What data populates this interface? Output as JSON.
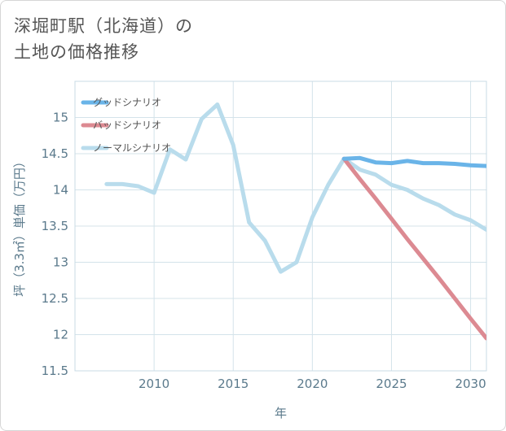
{
  "title_lines": [
    "深堀町駅（北海道）の",
    "土地の価格推移"
  ],
  "chart_data": {
    "type": "line",
    "title": "深堀町駅（北海道）の土地の価格推移",
    "xlabel": "年",
    "ylabel": "坪（3.3㎡）単価（万円）",
    "xlim": [
      2005,
      2031
    ],
    "ylim": [
      11.5,
      15.5
    ],
    "xticks": [
      2010,
      2015,
      2020,
      2025,
      2030
    ],
    "yticks": [
      11.5,
      12,
      12.5,
      13,
      13.5,
      14,
      14.5,
      15
    ],
    "grid": true,
    "legend_position": "top-left",
    "series": [
      {
        "name": "グッドシナリオ",
        "color": "#6ab4e8",
        "x": [
          2022,
          2023,
          2024,
          2025,
          2026,
          2027,
          2028,
          2029,
          2030,
          2031
        ],
        "y": [
          14.43,
          14.44,
          14.38,
          14.37,
          14.4,
          14.37,
          14.37,
          14.36,
          14.34,
          14.33
        ]
      },
      {
        "name": "バッドシナリオ",
        "color": "#dc8a92",
        "x": [
          2022,
          2023,
          2024,
          2025,
          2026,
          2027,
          2028,
          2029,
          2030,
          2031
        ],
        "y": [
          14.43,
          14.15,
          13.88,
          13.6,
          13.32,
          13.05,
          12.78,
          12.5,
          12.22,
          11.95
        ]
      },
      {
        "name": "ノーマルシナリオ",
        "color": "#b9dcec",
        "x": [
          2007,
          2008,
          2009,
          2010,
          2011,
          2012,
          2013,
          2014,
          2015,
          2016,
          2017,
          2018,
          2019,
          2020,
          2021,
          2022,
          2023,
          2024,
          2025,
          2026,
          2027,
          2028,
          2029,
          2030,
          2031
        ],
        "y": [
          14.08,
          14.08,
          14.05,
          13.96,
          14.56,
          14.42,
          14.98,
          15.18,
          14.62,
          13.55,
          13.3,
          12.87,
          13.0,
          13.62,
          14.07,
          14.43,
          14.28,
          14.21,
          14.07,
          14.0,
          13.88,
          13.79,
          13.66,
          13.58,
          13.45
        ]
      }
    ]
  }
}
